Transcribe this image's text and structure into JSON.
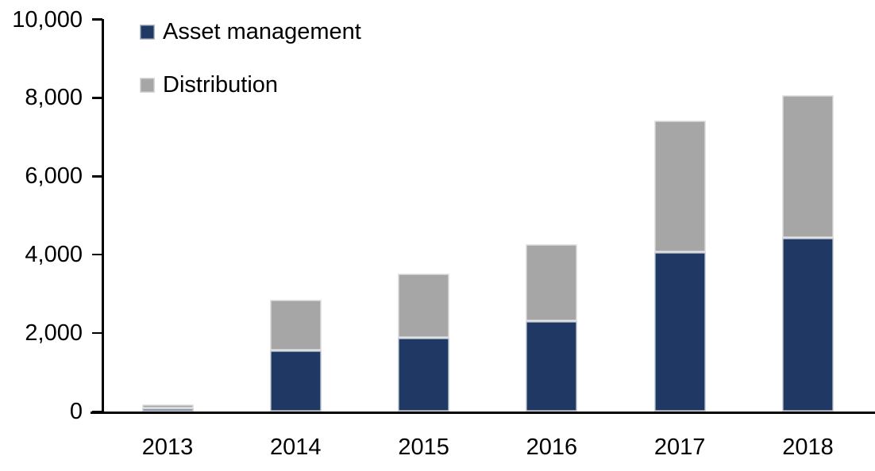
{
  "chart_data": {
    "type": "bar",
    "stacked": true,
    "title": "",
    "categories": [
      "2013",
      "2014",
      "2015",
      "2016",
      "2017",
      "2018"
    ],
    "series": [
      {
        "name": "Asset management",
        "color": "#1F3864",
        "values": [
          80,
          1550,
          1870,
          2300,
          4050,
          4420
        ]
      },
      {
        "name": "Distribution",
        "color": "#A6A6A6",
        "values": [
          100,
          1290,
          1630,
          1950,
          3370,
          3630
        ]
      }
    ],
    "ylim": [
      0,
      10000
    ],
    "ytick_step": 2000,
    "ytick_labels": [
      "0",
      "2,000",
      "4,000",
      "6,000",
      "8,000",
      "10,000"
    ],
    "xlabel": "",
    "ylabel": "",
    "grid": false,
    "legend_position": "top-left",
    "axis_color": "#000000",
    "background_color": "#FFFFFF"
  }
}
